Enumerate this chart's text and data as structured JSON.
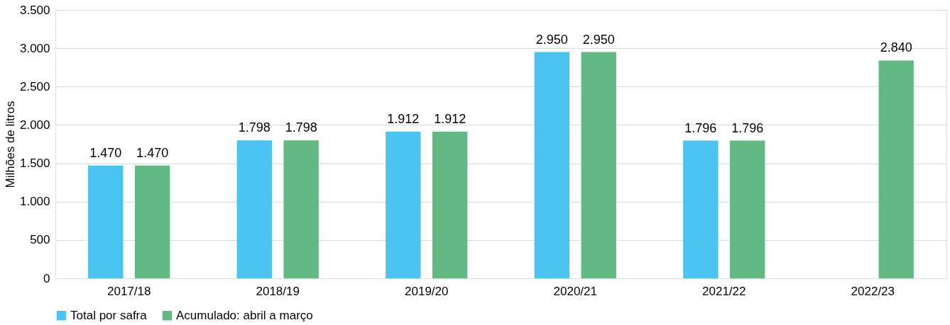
{
  "chart_data": {
    "type": "bar",
    "ylabel": "Milhões de litros",
    "categories": [
      "2017/18",
      "2018/19",
      "2019/20",
      "2020/21",
      "2021/22",
      "2022/23"
    ],
    "series": [
      {
        "name": "Total por safra",
        "color": "#4ac3f0",
        "values": [
          1470,
          1798,
          1912,
          2950,
          1796,
          null
        ],
        "value_labels": [
          "1.470",
          "1.798",
          "1.912",
          "2.950",
          "1.796",
          null
        ]
      },
      {
        "name": "Acumulado: abril a  março",
        "color": "#63b983",
        "values": [
          1470,
          1798,
          1912,
          2950,
          1796,
          2840
        ],
        "value_labels": [
          "1.470",
          "1.798",
          "1.912",
          "2.950",
          "1.796",
          "2.840"
        ]
      }
    ],
    "ylim": [
      0,
      3500
    ],
    "yticks": [
      0,
      {
        "value": 500,
        "label": "500"
      },
      {
        "value": 1000,
        "label": "1.000"
      },
      {
        "value": 1500,
        "label": "1.500"
      },
      {
        "value": 2000,
        "label": "2.000"
      },
      {
        "value": 2500,
        "label": "2.500"
      },
      {
        "value": 3000,
        "label": "3.000"
      },
      {
        "value": 3500,
        "label": "3.500"
      }
    ],
    "grid": "y",
    "legend": "bottom"
  }
}
